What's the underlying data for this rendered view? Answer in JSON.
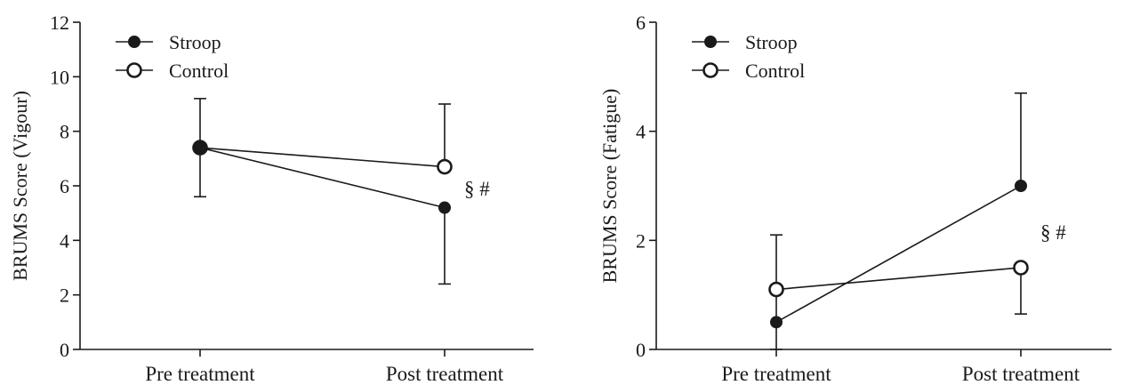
{
  "chart_data": [
    {
      "type": "line",
      "title": "",
      "xlabel": "",
      "ylabel": "BRUMS Score (Vigour)",
      "ylim": [
        0,
        12
      ],
      "yticks": [
        0,
        2,
        4,
        6,
        8,
        10,
        12
      ],
      "categories": [
        "Pre treatment",
        "Post treatment"
      ],
      "series": [
        {
          "name": "Stroop",
          "marker": "filled-circle",
          "values": [
            7.4,
            5.2
          ],
          "error_bars": [
            null,
            {
              "lower": 2.4,
              "upper": 5.2
            }
          ]
        },
        {
          "name": "Control",
          "marker": "open-circle",
          "values": [
            7.4,
            6.7
          ],
          "error_bars": [
            {
              "lower": 5.6,
              "upper": 9.2
            },
            {
              "lower": 6.7,
              "upper": 9.0
            }
          ]
        }
      ],
      "annotations": [
        {
          "text": "§ #",
          "category": "Post treatment",
          "y": 5.9
        }
      ],
      "legend": "top-left",
      "grid": false
    },
    {
      "type": "line",
      "title": "",
      "xlabel": "",
      "ylabel": "BRUMS Score (Fatigue)",
      "ylim": [
        0,
        6
      ],
      "yticks": [
        0,
        2,
        4,
        6
      ],
      "categories": [
        "Pre treatment",
        "Post treatment"
      ],
      "series": [
        {
          "name": "Stroop",
          "marker": "filled-circle",
          "values": [
            0.5,
            3.0
          ],
          "error_bars": [
            null,
            {
              "lower": 3.0,
              "upper": 4.7
            }
          ]
        },
        {
          "name": "Control",
          "marker": "open-circle",
          "values": [
            1.1,
            1.5
          ],
          "error_bars": [
            {
              "lower": 0.0,
              "upper": 2.1
            },
            {
              "lower": 0.65,
              "upper": 1.5
            }
          ]
        }
      ],
      "annotations": [
        {
          "text": "§ #",
          "category": "Post treatment",
          "y": 2.15
        }
      ],
      "legend": "top-left",
      "grid": false
    }
  ]
}
